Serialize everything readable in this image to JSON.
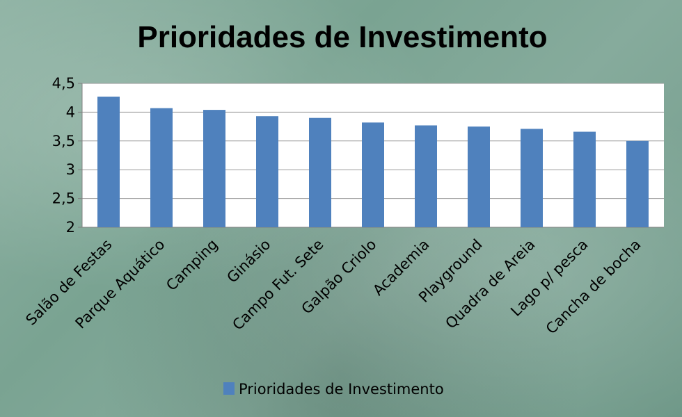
{
  "chart_data": {
    "type": "bar",
    "title": "Prioridades de Investimento",
    "xlabel": "",
    "ylabel": "",
    "categories": [
      "Salão de Festas",
      "Parque Aquático",
      "Camping",
      "Ginásio",
      "Campo Fut. Sete",
      "Galpão Criolo",
      "Academia",
      "Playground",
      "Quadra de Areia",
      "Lago p/ pesca",
      "Cancha de bocha"
    ],
    "series": [
      {
        "name": "Prioridades de Investimento",
        "values": [
          4.27,
          4.07,
          4.04,
          3.93,
          3.9,
          3.82,
          3.77,
          3.75,
          3.71,
          3.66,
          3.5
        ],
        "color": "#4f81bd"
      }
    ],
    "ylim": [
      2,
      4.5
    ],
    "yticks": [
      "2",
      "2,5",
      "3",
      "3,5",
      "4",
      "4,5"
    ],
    "yticks_values": [
      2,
      2.5,
      3,
      3.5,
      4,
      4.5
    ],
    "grid": true,
    "legend_position": "bottom"
  }
}
